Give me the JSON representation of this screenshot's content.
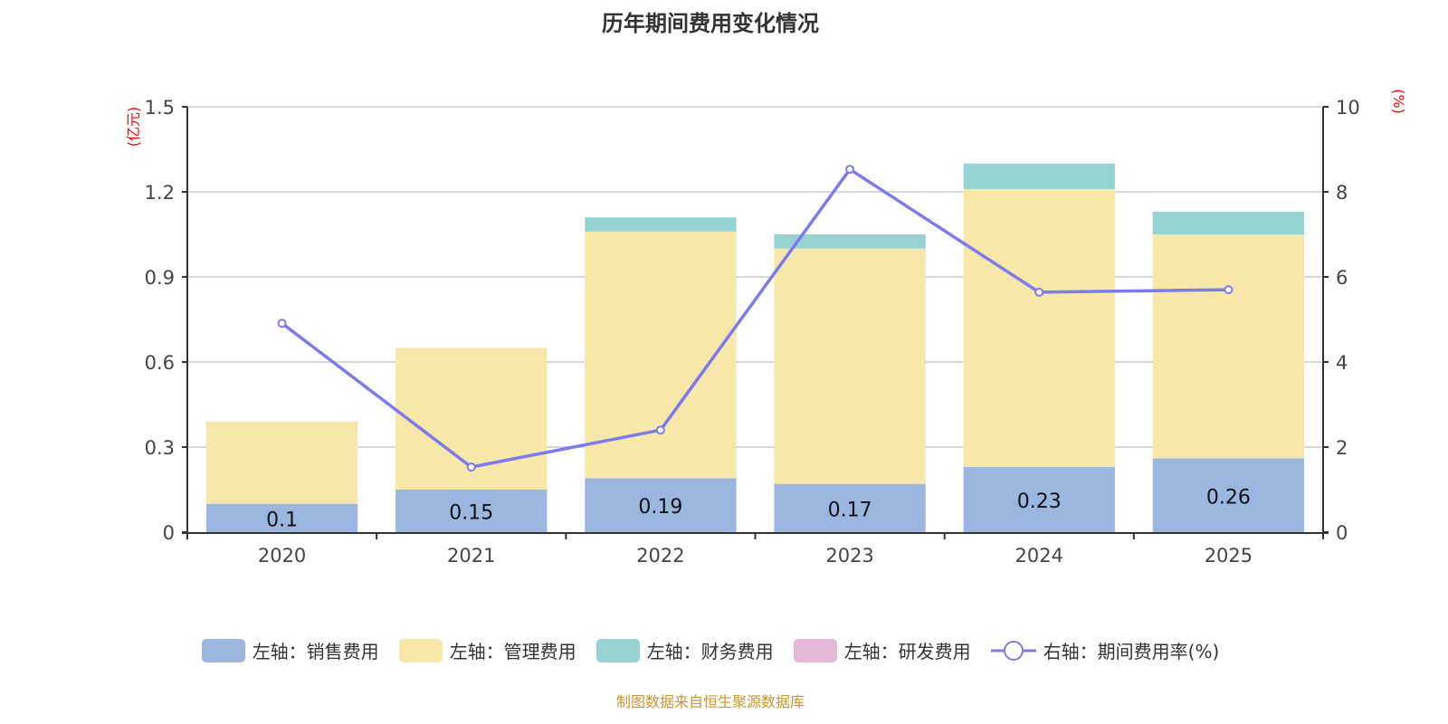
{
  "chart_data": {
    "type": "bar",
    "title": "历年期间费用变化情况",
    "categories": [
      "2020",
      "2021",
      "2022",
      "2023",
      "2024",
      "2025"
    ],
    "stacked": true,
    "left_axis": {
      "label": "(亿元)",
      "ylim": [
        0,
        1.5
      ],
      "ticks": [
        "0",
        "0.3",
        "0.6",
        "0.9",
        "1.2",
        "1.5"
      ],
      "tick_values": [
        0,
        0.3,
        0.6,
        0.9,
        1.2,
        1.5
      ]
    },
    "right_axis": {
      "label": "(%)",
      "ylim": [
        0,
        10
      ],
      "ticks": [
        "0",
        "2",
        "4",
        "6",
        "8",
        "10"
      ],
      "tick_values": [
        0,
        2,
        4,
        6,
        8,
        10
      ]
    },
    "grid": true,
    "legend_position": "bottom",
    "series": [
      {
        "name": "左轴：销售费用",
        "type": "bar",
        "axis": "left",
        "color": "#9bb7e0",
        "values": [
          0.1,
          0.15,
          0.19,
          0.17,
          0.23,
          0.26
        ],
        "labels": [
          "0.1",
          "0.15",
          "0.19",
          "0.17",
          "0.23",
          "0.26"
        ]
      },
      {
        "name": "左轴：管理费用",
        "type": "bar",
        "axis": "left",
        "color": "#f7e7a9",
        "values": [
          0.29,
          0.5,
          0.87,
          0.83,
          0.98,
          0.79
        ]
      },
      {
        "name": "左轴：财务费用",
        "type": "bar",
        "axis": "left",
        "color": "#96d4d4",
        "values": [
          0,
          0,
          0.05,
          0.05,
          0.09,
          0.08
        ]
      },
      {
        "name": "左轴：研发费用",
        "type": "bar",
        "axis": "left",
        "color": "#e6b8d8",
        "values": [
          0,
          0,
          0,
          0,
          0,
          0
        ]
      },
      {
        "name": "右轴：期间费用率(%)",
        "type": "line",
        "axis": "right",
        "color": "#7b7bef",
        "values": [
          4.91,
          1.53,
          2.4,
          8.53,
          5.64,
          5.7
        ]
      }
    ]
  },
  "source": "制图数据来自恒生聚源数据库"
}
